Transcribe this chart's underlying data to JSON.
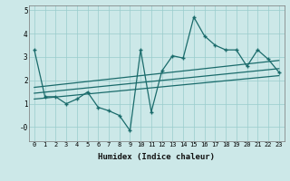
{
  "title": "",
  "xlabel": "Humidex (Indice chaleur)",
  "bg_color": "#cce8e8",
  "grid_color": "#99cccc",
  "line_color": "#1a6b6b",
  "xlim": [
    -0.5,
    23.5
  ],
  "ylim": [
    -0.6,
    5.2
  ],
  "xticks": [
    0,
    1,
    2,
    3,
    4,
    5,
    6,
    7,
    8,
    9,
    10,
    11,
    12,
    13,
    14,
    15,
    16,
    17,
    18,
    19,
    20,
    21,
    22,
    23
  ],
  "yticks": [
    0,
    1,
    2,
    3,
    4,
    5
  ],
  "ytick_labels": [
    "-0",
    "1",
    "2",
    "3",
    "4",
    "5"
  ],
  "series1_x": [
    0,
    1,
    2,
    3,
    4,
    5,
    6,
    7,
    8,
    9,
    10,
    11,
    12,
    13,
    14,
    15,
    16,
    17,
    18,
    19,
    20,
    21,
    22,
    23
  ],
  "series1_y": [
    3.3,
    1.3,
    1.3,
    1.0,
    1.2,
    1.5,
    0.85,
    0.7,
    0.5,
    -0.15,
    3.3,
    0.65,
    2.4,
    3.05,
    2.95,
    4.7,
    3.9,
    3.5,
    3.3,
    3.3,
    2.6,
    3.3,
    2.9,
    2.35
  ],
  "series2_x": [
    0,
    23
  ],
  "series2_y": [
    1.2,
    2.2
  ],
  "series3_x": [
    0,
    23
  ],
  "series3_y": [
    1.45,
    2.5
  ],
  "series4_x": [
    0,
    23
  ],
  "series4_y": [
    1.7,
    2.85
  ]
}
